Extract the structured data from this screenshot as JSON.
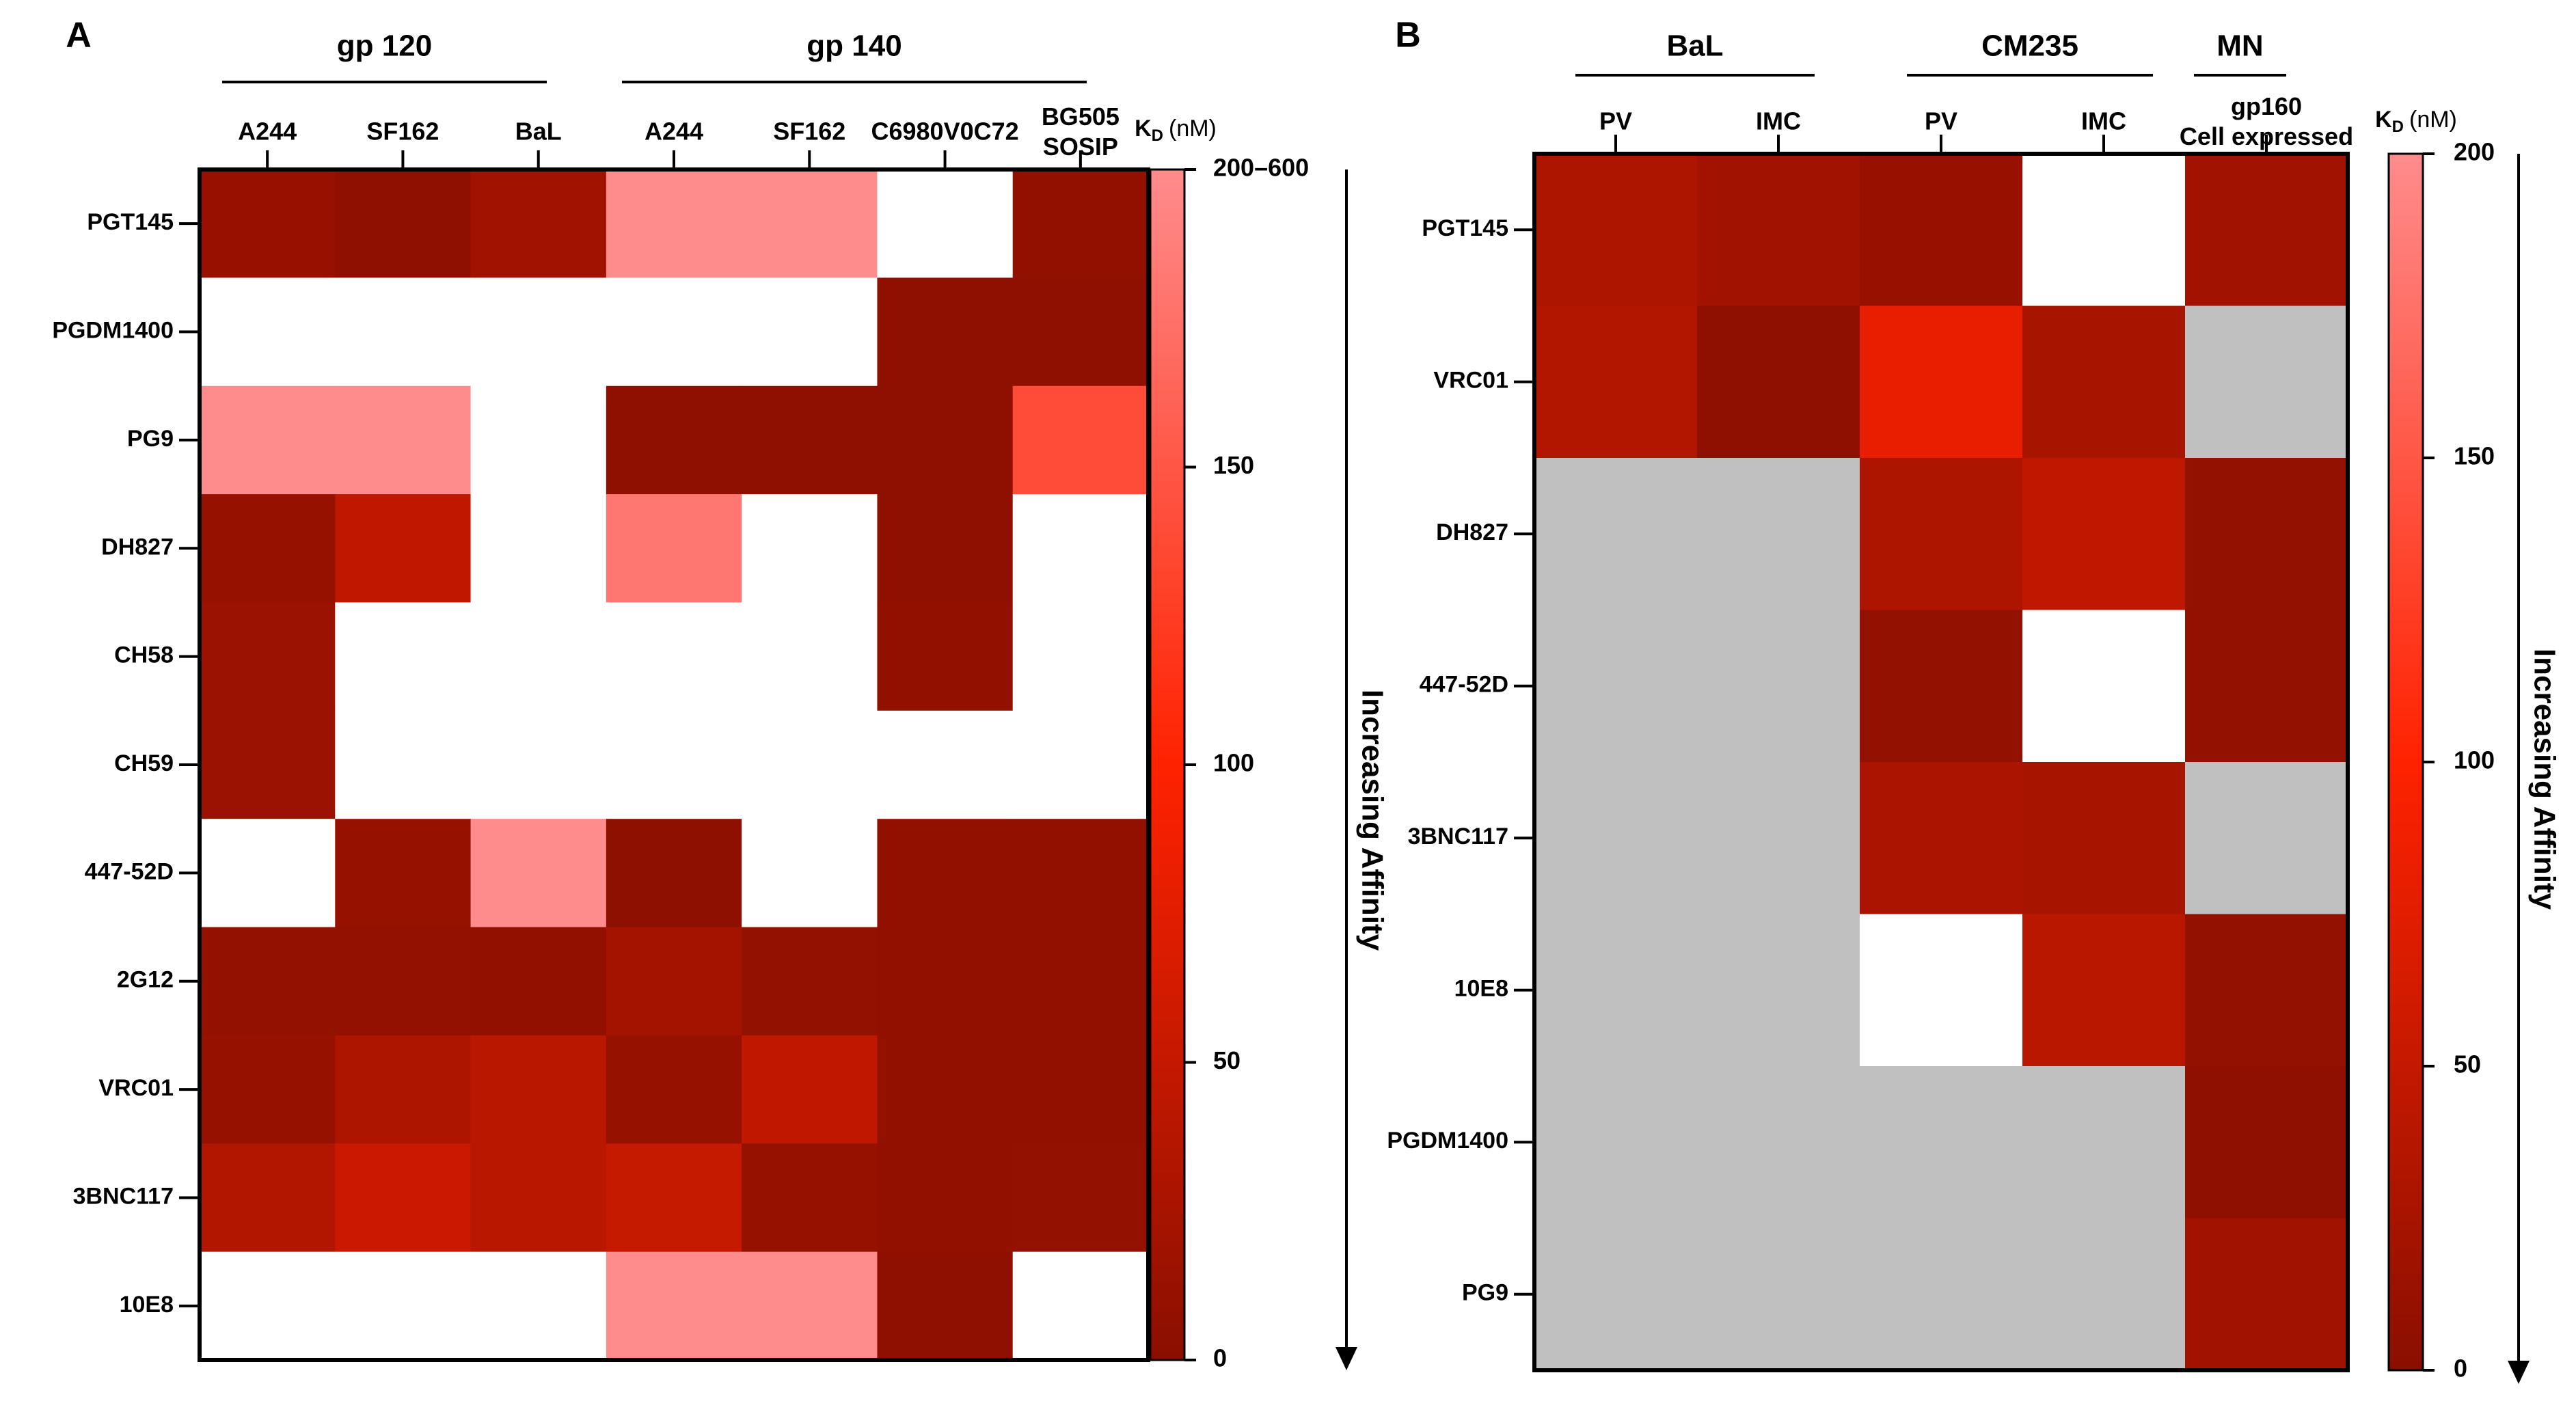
{
  "chart_data": [
    {
      "type": "heatmap",
      "panel_label": "A",
      "column_groups": [
        {
          "name": "gp 120",
          "columns": [
            "A244",
            "SF162",
            "BaL"
          ]
        },
        {
          "name": "gp 140",
          "columns": [
            "A244",
            "SF162",
            "C6980V0C72",
            "BG505 SOSIP"
          ]
        }
      ],
      "columns": [
        "A244",
        "SF162",
        "BaL",
        "A244",
        "SF162",
        "C6980V0C72",
        "BG505\nSOSIP"
      ],
      "rows": [
        "PGT145",
        "PGDM1400",
        "PG9",
        "DH827",
        "CH58",
        "CH59",
        "447-52D",
        "2G12",
        "VRC01",
        "3BNC117",
        "10E8"
      ],
      "values": [
        [
          12,
          5,
          20,
          200,
          200,
          null,
          6
        ],
        [
          null,
          null,
          null,
          null,
          null,
          4,
          5
        ],
        [
          200,
          200,
          null,
          4,
          4,
          4,
          140
        ],
        [
          10,
          45,
          null,
          180,
          null,
          4,
          null
        ],
        [
          15,
          null,
          null,
          null,
          null,
          7,
          null
        ],
        [
          15,
          null,
          null,
          null,
          null,
          null,
          null
        ],
        [
          null,
          10,
          200,
          3,
          null,
          7,
          6
        ],
        [
          8,
          8,
          6,
          22,
          8,
          6,
          7
        ],
        [
          10,
          30,
          40,
          10,
          45,
          6,
          6
        ],
        [
          35,
          55,
          40,
          50,
          10,
          6,
          8
        ],
        [
          null,
          null,
          null,
          200,
          200,
          4,
          null
        ]
      ],
      "colorbar": {
        "label": "K",
        "label_sub": "D",
        "unit": "(nM)",
        "min": 0,
        "max": 200,
        "top_label": "200–600",
        "ticks": [
          0,
          50,
          100,
          150
        ],
        "tick_labels": [
          "0",
          "50",
          "100",
          "150"
        ]
      },
      "arrow_label": "Increasing Affinity"
    },
    {
      "type": "heatmap",
      "panel_label": "B",
      "column_groups": [
        {
          "name": "BaL",
          "columns": [
            "PV",
            "IMC"
          ]
        },
        {
          "name": "CM235",
          "columns": [
            "PV",
            "IMC"
          ]
        },
        {
          "name": "MN",
          "columns": [
            "gp160 Cell expressed"
          ]
        }
      ],
      "columns": [
        "PV",
        "IMC",
        "PV",
        "IMC",
        "gp160\nCell expressed"
      ],
      "rows": [
        "PGT145",
        "VRC01",
        "DH827",
        "447-52D",
        "3BNC117",
        "10E8",
        "PGDM1400",
        "PG9"
      ],
      "values": [
        [
          "30",
          "20",
          "12",
          "blank",
          "20"
        ],
        [
          "35",
          "4",
          "80",
          "25",
          "gray"
        ],
        [
          "gray",
          "gray",
          "30",
          "45",
          "8"
        ],
        [
          "gray",
          "gray",
          "8",
          "blank",
          "8"
        ],
        [
          "gray",
          "gray",
          "28",
          "25",
          "gray"
        ],
        [
          "gray",
          "gray",
          "blank",
          "40",
          "8"
        ],
        [
          "gray",
          "gray",
          "gray",
          "gray",
          "5"
        ],
        [
          "gray",
          "gray",
          "gray",
          "gray",
          "20"
        ]
      ],
      "colorbar": {
        "label": "K",
        "label_sub": "D",
        "unit": "(nM)",
        "min": 0,
        "max": 200,
        "top_label": "200",
        "ticks": [
          0,
          50,
          100,
          150
        ],
        "tick_labels": [
          "0",
          "50",
          "100",
          "150"
        ]
      },
      "arrow_label": "Increasing Affinity"
    }
  ],
  "colors": {
    "high": "#ff8c8c",
    "mid": "#ff2200",
    "low": "#8a0f00",
    "missing": "#c0c0c0",
    "blank": "#ffffff",
    "frame": "#000000"
  }
}
